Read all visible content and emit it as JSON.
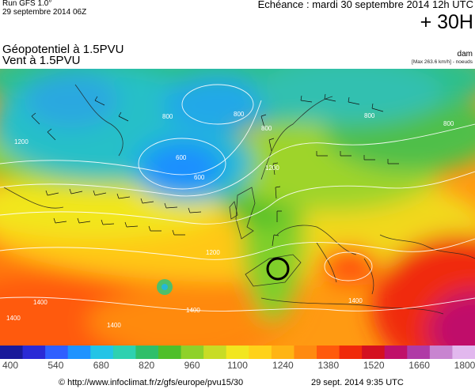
{
  "header": {
    "run_title": "Run GFS 1.0°",
    "run_date": "29 septembre 2014 06Z",
    "echeance": "Echéance : mardi 30 septembre 2014 12h UTC",
    "lead_time": "+ 30H"
  },
  "parameters": {
    "line1": "Géopotentiel à 1.5PVU",
    "line2": "Vent à 1.5PVU"
  },
  "units": {
    "label": "dam",
    "max_info": "[Max 263.6 km/h] - noeuds"
  },
  "contour_labels": [
    "800",
    "800",
    "800",
    "600",
    "600",
    "800",
    "800",
    "1200",
    "1200",
    "1200",
    "1400",
    "1400",
    "1400",
    "1400",
    "1400"
  ],
  "colorbar": {
    "ticks": [
      "400",
      "540",
      "680",
      "820",
      "960",
      "1100",
      "1240",
      "1380",
      "1520",
      "1660",
      "1800"
    ],
    "colors": [
      "#1a1a9a",
      "#2a2ad6",
      "#2f5fff",
      "#1f93ff",
      "#24c4e6",
      "#2ed1b0",
      "#2fbf6a",
      "#4fbf2a",
      "#8fd12a",
      "#c8dc25",
      "#f2e61f",
      "#ffd21a",
      "#ffb414",
      "#ff8a10",
      "#ff5a0c",
      "#f02a0a",
      "#d41020",
      "#c0106a",
      "#b03aa6",
      "#c884d0",
      "#e2b8ee"
    ]
  },
  "footer": {
    "url": "© http://www.infoclimat.fr/z/gfs/europe/pvu15/30",
    "date": "29 sept. 2014  9:35 UTC"
  }
}
